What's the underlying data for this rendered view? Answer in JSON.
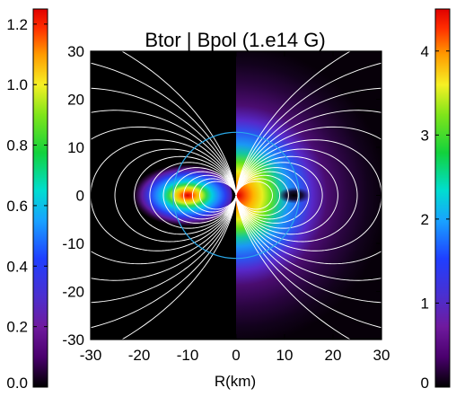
{
  "chart_data": {
    "type": "heatmap",
    "title": "Btor | Bpol (1.e14 G)",
    "xlabel": "R(km)",
    "ylabel": "",
    "xlim": [
      -30,
      30
    ],
    "ylim": [
      -30,
      30
    ],
    "x_ticks": [
      -30,
      -20,
      -10,
      0,
      10,
      20,
      30
    ],
    "y_ticks": [
      -30,
      -20,
      -10,
      0,
      10,
      20,
      30
    ],
    "panels": [
      {
        "name": "Btor",
        "side": "left",
        "field_peak": {
          "x": -10,
          "y": 0,
          "value": 1.2
        },
        "colorbar": "left"
      },
      {
        "name": "Bpol",
        "side": "right",
        "field_peak": {
          "x": 0,
          "y": 0,
          "value": 4.4
        },
        "field_zero": {
          "x": 12,
          "y": 0
        },
        "colorbar": "right"
      }
    ],
    "star_radius_km": 13,
    "field_lines": "white dipole contours",
    "colorbars": [
      {
        "position": "left",
        "range": [
          0,
          1.25
        ],
        "ticks": [
          {
            "value": 0.0,
            "label": "0.0"
          },
          {
            "value": 0.2,
            "label": "0.2"
          },
          {
            "value": 0.4,
            "label": "0.4"
          },
          {
            "value": 0.6,
            "label": "0.6"
          },
          {
            "value": 0.8,
            "label": "0.8"
          },
          {
            "value": 1.0,
            "label": "1.0"
          },
          {
            "value": 1.2,
            "label": "1.2"
          }
        ]
      },
      {
        "position": "right",
        "range": [
          0,
          4.5
        ],
        "ticks": [
          {
            "value": 0,
            "label": "0"
          },
          {
            "value": 1,
            "label": "1"
          },
          {
            "value": 2,
            "label": "2"
          },
          {
            "value": 3,
            "label": "3"
          },
          {
            "value": 4,
            "label": "4"
          }
        ]
      }
    ],
    "colors": {
      "star_outline": "#2aa8e8",
      "field_lines": "#ffffff",
      "background": "#000000"
    }
  }
}
